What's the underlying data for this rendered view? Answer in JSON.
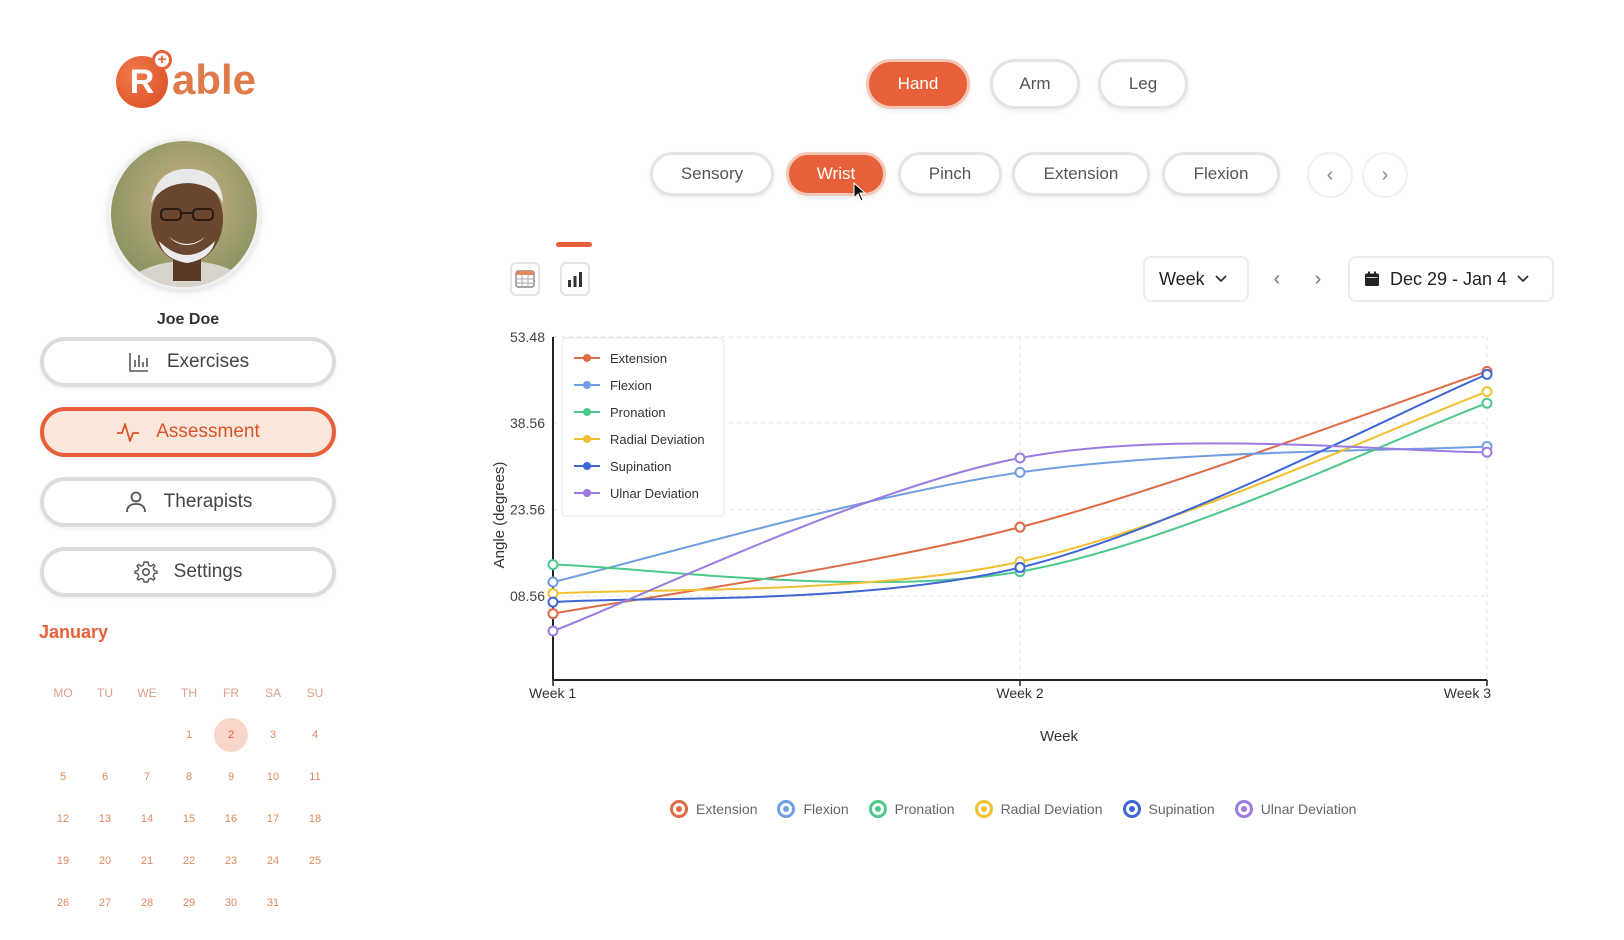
{
  "app": {
    "logo_letter": "R",
    "logo_text": "able"
  },
  "user": {
    "name": "Joe Doe"
  },
  "sidebar": {
    "items": [
      {
        "label": "Exercises",
        "icon": "bar-chart-icon",
        "active": false
      },
      {
        "label": "Assessment",
        "icon": "activity-icon",
        "active": true
      },
      {
        "label": "Therapists",
        "icon": "person-icon",
        "active": false
      },
      {
        "label": "Settings",
        "icon": "gear-icon",
        "active": false
      }
    ]
  },
  "calendar": {
    "month": "January",
    "weekdays": [
      "MO",
      "TU",
      "WE",
      "TH",
      "FR",
      "SA",
      "SU"
    ],
    "weeks": [
      [
        "",
        "",
        "",
        "1",
        "2",
        "3",
        "4"
      ],
      [
        "5",
        "6",
        "7",
        "8",
        "9",
        "10",
        "11"
      ],
      [
        "12",
        "13",
        "14",
        "15",
        "16",
        "17",
        "18"
      ],
      [
        "19",
        "20",
        "21",
        "22",
        "23",
        "24",
        "25"
      ],
      [
        "26",
        "27",
        "28",
        "29",
        "30",
        "31",
        ""
      ]
    ],
    "selected_day": "2"
  },
  "body_tabs": [
    {
      "label": "Hand",
      "active": true
    },
    {
      "label": "Arm",
      "active": false
    },
    {
      "label": "Leg",
      "active": false
    }
  ],
  "sub_tabs": [
    {
      "label": "Sensory",
      "active": false
    },
    {
      "label": "Wrist",
      "active": true
    },
    {
      "label": "Pinch",
      "active": false
    },
    {
      "label": "Extension",
      "active": false
    },
    {
      "label": "Flexion",
      "active": false
    }
  ],
  "toolbar": {
    "period": "Week",
    "date_range": "Dec 29 - Jan 4",
    "prev_symbol": "‹",
    "next_symbol": "›"
  },
  "colors": {
    "accent": "#e8603a",
    "Extension": "#e06a45",
    "Flexion": "#6f9fe0",
    "Pronation": "#4cc98a",
    "Radial Deviation": "#f0c030",
    "Supination": "#3d65d6",
    "Ulnar Deviation": "#9b7be0"
  },
  "chart_data": {
    "type": "line",
    "x": [
      "Week 1",
      "Week 2",
      "Week 3"
    ],
    "xlabel": "Week",
    "ylabel": "Angle (degrees)",
    "yticks": [
      "53.48",
      "38.56",
      "23.56",
      "08.56"
    ],
    "ylim": [
      -6,
      53.48
    ],
    "grid": true,
    "legend": "top-left",
    "series": [
      {
        "name": "Extension",
        "values": [
          5.5,
          20.5,
          47.5
        ]
      },
      {
        "name": "Flexion",
        "values": [
          11.0,
          30.0,
          34.5
        ]
      },
      {
        "name": "Pronation",
        "values": [
          14.0,
          12.8,
          42.0
        ]
      },
      {
        "name": "Radial Deviation",
        "values": [
          9.0,
          14.5,
          44.0
        ]
      },
      {
        "name": "Supination",
        "values": [
          7.5,
          13.5,
          47.0
        ]
      },
      {
        "name": "Ulnar Deviation",
        "values": [
          2.5,
          32.5,
          33.5
        ]
      }
    ]
  }
}
